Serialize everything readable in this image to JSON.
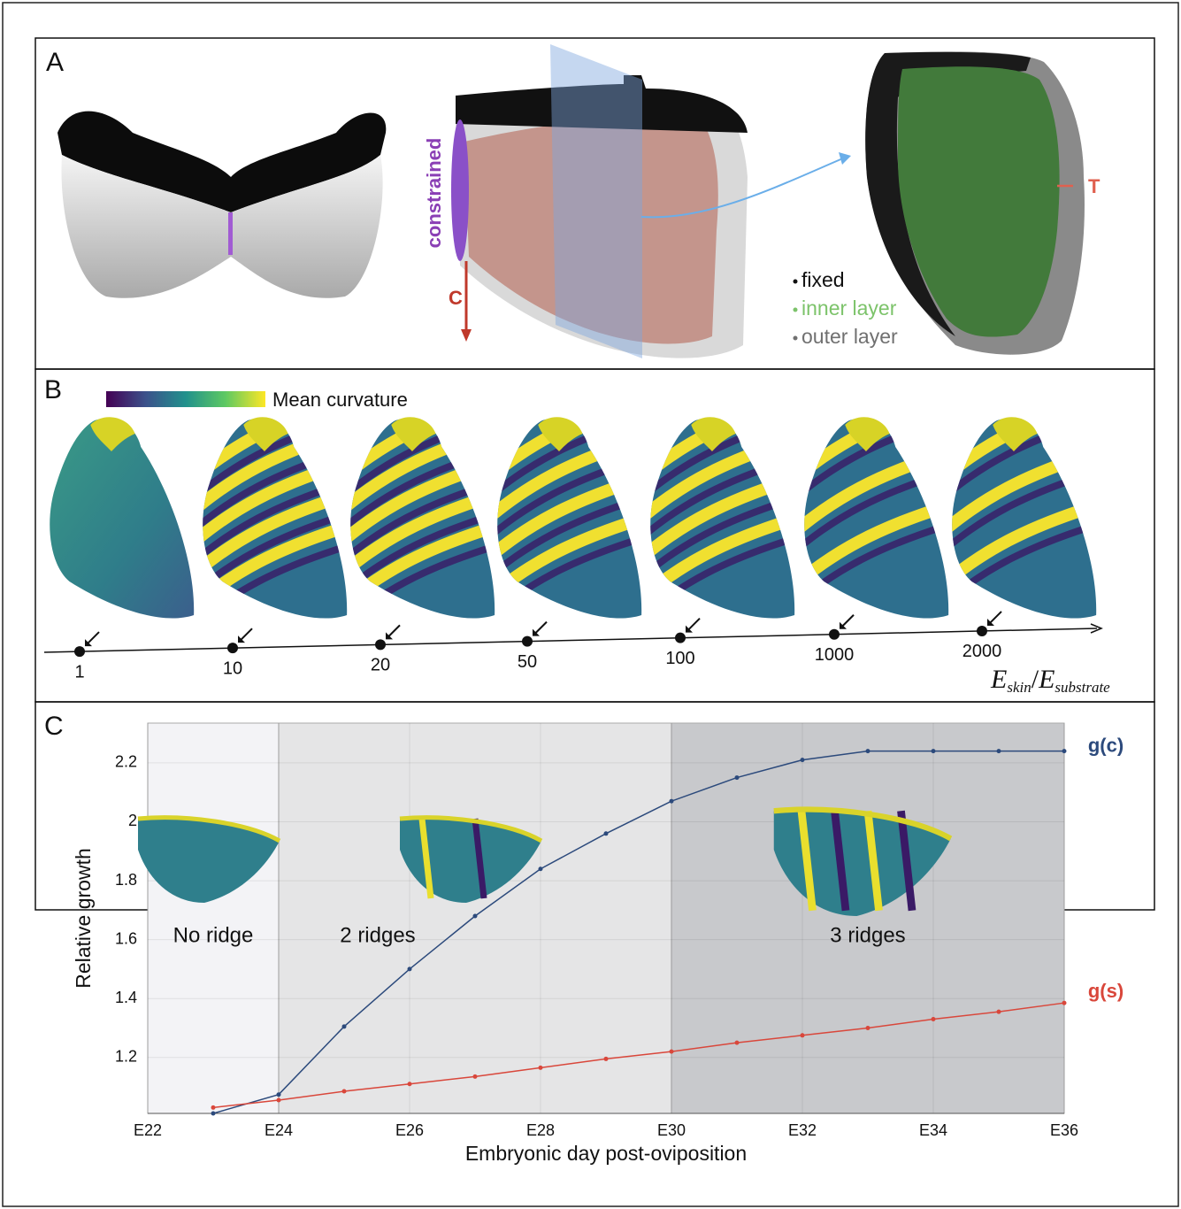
{
  "panel_a": {
    "label": "A",
    "constraint_label": "constrained",
    "c_label": "C",
    "t_label": "T",
    "legend": [
      {
        "text": "fixed",
        "color": "#111111"
      },
      {
        "text": "inner layer",
        "color": "#7cc36a"
      },
      {
        "text": "outer layer",
        "color": "#707070"
      }
    ]
  },
  "panel_b": {
    "label": "B",
    "colorbar_label": "Mean curvature",
    "ratios": [
      1,
      10,
      20,
      50,
      100,
      1000,
      2000
    ],
    "axis_label": [
      "E",
      "skin",
      "/",
      "E",
      "substrate"
    ]
  },
  "panel_c_label": "C",
  "chart_data": {
    "type": "line",
    "x": [
      23,
      24,
      25,
      26,
      27,
      28,
      29,
      30,
      31,
      32,
      33,
      34,
      35,
      36
    ],
    "series": [
      {
        "name": "g(c)",
        "color": "#2c4a7c",
        "values": [
          1.01,
          1.074,
          1.305,
          1.5,
          1.68,
          1.84,
          1.96,
          2.07,
          2.15,
          2.21,
          2.24,
          2.24,
          2.24,
          2.24
        ]
      },
      {
        "name": "g(s)",
        "color": "#d9473b",
        "values": [
          1.03,
          1.055,
          1.085,
          1.11,
          1.135,
          1.165,
          1.195,
          1.22,
          1.25,
          1.275,
          1.3,
          1.33,
          1.355,
          1.385
        ]
      }
    ],
    "xlim": [
      22,
      36
    ],
    "xticks": [
      {
        "value": 22,
        "label": "E22"
      },
      {
        "value": 24,
        "label": "E24"
      },
      {
        "value": 26,
        "label": "E26"
      },
      {
        "value": 28,
        "label": "E28"
      },
      {
        "value": 30,
        "label": "E30"
      },
      {
        "value": 32,
        "label": "E32"
      },
      {
        "value": 34,
        "label": "E34"
      },
      {
        "value": 36,
        "label": "E36"
      }
    ],
    "ylim": [
      1.01,
      2.335
    ],
    "yticks": [
      1.2,
      1.4,
      1.6,
      1.8,
      2.0,
      2.2
    ],
    "grid": true,
    "xlabel": "Embryonic day post-oviposition",
    "ylabel": "Relative growth",
    "regions": [
      {
        "label": "No ridge",
        "range": [
          22,
          24
        ],
        "color": "#f3f3f6"
      },
      {
        "label": "2 ridges",
        "range": [
          24,
          30
        ],
        "color": "#e5e5e6"
      },
      {
        "label": "3 ridges",
        "range": [
          30,
          36
        ],
        "color": "#c8c9cc"
      }
    ]
  }
}
